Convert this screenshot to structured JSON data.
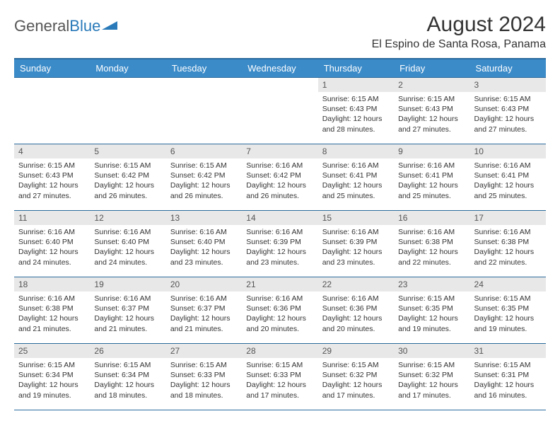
{
  "logo": {
    "part1": "General",
    "part2": "Blue"
  },
  "title": "August 2024",
  "subtitle": "El Espino de Santa Rosa, Panama",
  "colors": {
    "header_bg": "#3b8bc9",
    "header_border": "#2a6a9c",
    "daynum_bg": "#e8e8e8",
    "text": "#333333",
    "logo_gray": "#555555",
    "logo_blue": "#2a7ab9"
  },
  "weekdays": [
    "Sunday",
    "Monday",
    "Tuesday",
    "Wednesday",
    "Thursday",
    "Friday",
    "Saturday"
  ],
  "weeks": [
    [
      {
        "n": "",
        "sr": "",
        "ss": "",
        "dl": ""
      },
      {
        "n": "",
        "sr": "",
        "ss": "",
        "dl": ""
      },
      {
        "n": "",
        "sr": "",
        "ss": "",
        "dl": ""
      },
      {
        "n": "",
        "sr": "",
        "ss": "",
        "dl": ""
      },
      {
        "n": "1",
        "sr": "Sunrise: 6:15 AM",
        "ss": "Sunset: 6:43 PM",
        "dl": "Daylight: 12 hours and 28 minutes."
      },
      {
        "n": "2",
        "sr": "Sunrise: 6:15 AM",
        "ss": "Sunset: 6:43 PM",
        "dl": "Daylight: 12 hours and 27 minutes."
      },
      {
        "n": "3",
        "sr": "Sunrise: 6:15 AM",
        "ss": "Sunset: 6:43 PM",
        "dl": "Daylight: 12 hours and 27 minutes."
      }
    ],
    [
      {
        "n": "4",
        "sr": "Sunrise: 6:15 AM",
        "ss": "Sunset: 6:43 PM",
        "dl": "Daylight: 12 hours and 27 minutes."
      },
      {
        "n": "5",
        "sr": "Sunrise: 6:15 AM",
        "ss": "Sunset: 6:42 PM",
        "dl": "Daylight: 12 hours and 26 minutes."
      },
      {
        "n": "6",
        "sr": "Sunrise: 6:15 AM",
        "ss": "Sunset: 6:42 PM",
        "dl": "Daylight: 12 hours and 26 minutes."
      },
      {
        "n": "7",
        "sr": "Sunrise: 6:16 AM",
        "ss": "Sunset: 6:42 PM",
        "dl": "Daylight: 12 hours and 26 minutes."
      },
      {
        "n": "8",
        "sr": "Sunrise: 6:16 AM",
        "ss": "Sunset: 6:41 PM",
        "dl": "Daylight: 12 hours and 25 minutes."
      },
      {
        "n": "9",
        "sr": "Sunrise: 6:16 AM",
        "ss": "Sunset: 6:41 PM",
        "dl": "Daylight: 12 hours and 25 minutes."
      },
      {
        "n": "10",
        "sr": "Sunrise: 6:16 AM",
        "ss": "Sunset: 6:41 PM",
        "dl": "Daylight: 12 hours and 25 minutes."
      }
    ],
    [
      {
        "n": "11",
        "sr": "Sunrise: 6:16 AM",
        "ss": "Sunset: 6:40 PM",
        "dl": "Daylight: 12 hours and 24 minutes."
      },
      {
        "n": "12",
        "sr": "Sunrise: 6:16 AM",
        "ss": "Sunset: 6:40 PM",
        "dl": "Daylight: 12 hours and 24 minutes."
      },
      {
        "n": "13",
        "sr": "Sunrise: 6:16 AM",
        "ss": "Sunset: 6:40 PM",
        "dl": "Daylight: 12 hours and 23 minutes."
      },
      {
        "n": "14",
        "sr": "Sunrise: 6:16 AM",
        "ss": "Sunset: 6:39 PM",
        "dl": "Daylight: 12 hours and 23 minutes."
      },
      {
        "n": "15",
        "sr": "Sunrise: 6:16 AM",
        "ss": "Sunset: 6:39 PM",
        "dl": "Daylight: 12 hours and 23 minutes."
      },
      {
        "n": "16",
        "sr": "Sunrise: 6:16 AM",
        "ss": "Sunset: 6:38 PM",
        "dl": "Daylight: 12 hours and 22 minutes."
      },
      {
        "n": "17",
        "sr": "Sunrise: 6:16 AM",
        "ss": "Sunset: 6:38 PM",
        "dl": "Daylight: 12 hours and 22 minutes."
      }
    ],
    [
      {
        "n": "18",
        "sr": "Sunrise: 6:16 AM",
        "ss": "Sunset: 6:38 PM",
        "dl": "Daylight: 12 hours and 21 minutes."
      },
      {
        "n": "19",
        "sr": "Sunrise: 6:16 AM",
        "ss": "Sunset: 6:37 PM",
        "dl": "Daylight: 12 hours and 21 minutes."
      },
      {
        "n": "20",
        "sr": "Sunrise: 6:16 AM",
        "ss": "Sunset: 6:37 PM",
        "dl": "Daylight: 12 hours and 21 minutes."
      },
      {
        "n": "21",
        "sr": "Sunrise: 6:16 AM",
        "ss": "Sunset: 6:36 PM",
        "dl": "Daylight: 12 hours and 20 minutes."
      },
      {
        "n": "22",
        "sr": "Sunrise: 6:16 AM",
        "ss": "Sunset: 6:36 PM",
        "dl": "Daylight: 12 hours and 20 minutes."
      },
      {
        "n": "23",
        "sr": "Sunrise: 6:15 AM",
        "ss": "Sunset: 6:35 PM",
        "dl": "Daylight: 12 hours and 19 minutes."
      },
      {
        "n": "24",
        "sr": "Sunrise: 6:15 AM",
        "ss": "Sunset: 6:35 PM",
        "dl": "Daylight: 12 hours and 19 minutes."
      }
    ],
    [
      {
        "n": "25",
        "sr": "Sunrise: 6:15 AM",
        "ss": "Sunset: 6:34 PM",
        "dl": "Daylight: 12 hours and 19 minutes."
      },
      {
        "n": "26",
        "sr": "Sunrise: 6:15 AM",
        "ss": "Sunset: 6:34 PM",
        "dl": "Daylight: 12 hours and 18 minutes."
      },
      {
        "n": "27",
        "sr": "Sunrise: 6:15 AM",
        "ss": "Sunset: 6:33 PM",
        "dl": "Daylight: 12 hours and 18 minutes."
      },
      {
        "n": "28",
        "sr": "Sunrise: 6:15 AM",
        "ss": "Sunset: 6:33 PM",
        "dl": "Daylight: 12 hours and 17 minutes."
      },
      {
        "n": "29",
        "sr": "Sunrise: 6:15 AM",
        "ss": "Sunset: 6:32 PM",
        "dl": "Daylight: 12 hours and 17 minutes."
      },
      {
        "n": "30",
        "sr": "Sunrise: 6:15 AM",
        "ss": "Sunset: 6:32 PM",
        "dl": "Daylight: 12 hours and 17 minutes."
      },
      {
        "n": "31",
        "sr": "Sunrise: 6:15 AM",
        "ss": "Sunset: 6:31 PM",
        "dl": "Daylight: 12 hours and 16 minutes."
      }
    ]
  ]
}
